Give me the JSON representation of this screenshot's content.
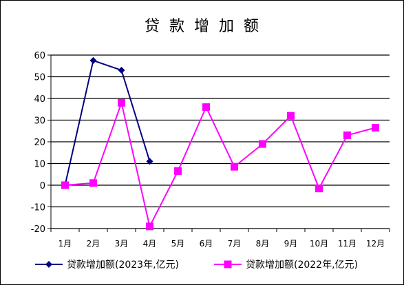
{
  "chart_data": {
    "type": "line",
    "title": "贷款增加额",
    "categories": [
      "1月",
      "2月",
      "3月",
      "4月",
      "5月",
      "6月",
      "7月",
      "8月",
      "9月",
      "10月",
      "11月",
      "12月"
    ],
    "ylim": [
      -20,
      60
    ],
    "yticks": [
      -20,
      -10,
      0,
      10,
      20,
      30,
      40,
      50,
      60
    ],
    "grid": "horizontal",
    "legend_position": "bottom",
    "series": [
      {
        "name": "贷款增加额(2023年,亿元)",
        "color": "#000080",
        "marker": "diamond",
        "values": [
          0,
          57.5,
          53,
          11,
          null,
          null,
          null,
          null,
          null,
          null,
          null,
          null
        ]
      },
      {
        "name": "贷款增加额(2022年,亿元)",
        "color": "#ff00ff",
        "marker": "square",
        "values": [
          0,
          1,
          38,
          -19,
          6.5,
          36,
          8.5,
          19,
          32,
          -1.5,
          23,
          26.5
        ]
      }
    ]
  }
}
